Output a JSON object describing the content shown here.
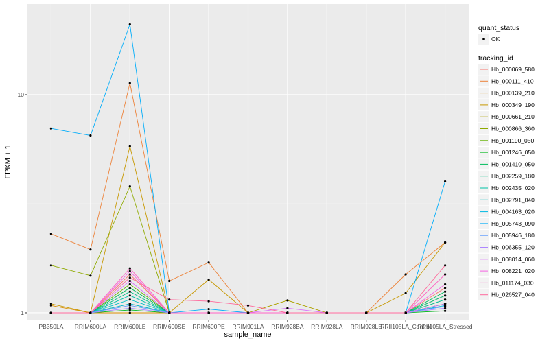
{
  "chart_data": {
    "type": "line",
    "title": "",
    "xlabel": "sample_name",
    "ylabel": "FPKM + 1",
    "y_scale": "log10",
    "ylim": [
      0.93,
      26
    ],
    "y_ticks": [
      {
        "value": 1,
        "label": "1"
      },
      {
        "value": 10,
        "label": "10"
      }
    ],
    "categories": [
      "PB350LA",
      "RRIM600LA",
      "RRIM600LE",
      "RRIM600SE",
      "RRIM600PE",
      "RRIM901LA",
      "RRIM928BA",
      "RRIM928LA",
      "RRIM928LE",
      "RRII105LA_Control",
      "RRII105LA_Stressed"
    ],
    "point_color": "#000000",
    "background": "#ebebeb",
    "series": [
      {
        "name": "Hb_000069_580",
        "color": "#F8766D",
        "values": [
          1.0,
          1.0,
          1.5,
          1.0,
          1.0,
          1.0,
          1.0,
          1.0,
          1.0,
          1.0,
          1.3
        ]
      },
      {
        "name": "Hb_000111_410",
        "color": "#EC8239",
        "values": [
          2.3,
          1.95,
          11.3,
          1.4,
          1.7,
          1.0,
          1.0,
          1.0,
          1.0,
          1.5,
          2.1
        ]
      },
      {
        "name": "Hb_000139_210",
        "color": "#DB8E00",
        "values": [
          1.08,
          1.0,
          1.0,
          1.0,
          1.0,
          1.0,
          1.0,
          1.0,
          1.0,
          1.0,
          1.1
        ]
      },
      {
        "name": "Hb_000349_190",
        "color": "#C79800",
        "values": [
          1.1,
          1.0,
          5.8,
          1.0,
          1.42,
          1.0,
          1.0,
          1.0,
          1.0,
          1.23,
          2.1
        ]
      },
      {
        "name": "Hb_000661_210",
        "color": "#AEA200",
        "values": [
          1.0,
          1.0,
          1.1,
          1.0,
          1.0,
          1.0,
          1.14,
          1.0,
          1.0,
          1.0,
          1.2
        ]
      },
      {
        "name": "Hb_000866_360",
        "color": "#8FAA00",
        "values": [
          1.65,
          1.48,
          3.8,
          1.0,
          1.0,
          1.0,
          1.0,
          1.0,
          1.0,
          1.0,
          1.15
        ]
      },
      {
        "name": "Hb_001190_050",
        "color": "#64B200",
        "values": [
          1.0,
          1.0,
          1.35,
          1.0,
          1.0,
          1.0,
          1.0,
          1.0,
          1.0,
          1.0,
          1.1
        ]
      },
      {
        "name": "Hb_001246_050",
        "color": "#00B81B",
        "values": [
          1.0,
          1.0,
          1.03,
          1.0,
          1.0,
          1.0,
          1.0,
          1.0,
          1.0,
          1.0,
          1.02
        ]
      },
      {
        "name": "Hb_001410_050",
        "color": "#00BD5C",
        "values": [
          1.0,
          1.0,
          1.3,
          1.0,
          1.0,
          1.0,
          1.0,
          1.0,
          1.0,
          1.0,
          1.25
        ]
      },
      {
        "name": "Hb_002259_180",
        "color": "#00C086",
        "values": [
          1.0,
          1.0,
          1.25,
          1.0,
          1.0,
          1.0,
          1.0,
          1.0,
          1.0,
          1.0,
          1.2
        ]
      },
      {
        "name": "Hb_002435_020",
        "color": "#00C1A7",
        "values": [
          1.0,
          1.0,
          1.2,
          1.0,
          1.0,
          1.0,
          1.0,
          1.0,
          1.0,
          1.0,
          1.15
        ]
      },
      {
        "name": "Hb_002791_040",
        "color": "#00BFC4",
        "values": [
          1.0,
          1.0,
          1.15,
          1.0,
          1.0,
          1.0,
          1.0,
          1.0,
          1.0,
          1.0,
          1.1
        ]
      },
      {
        "name": "Hb_004163_020",
        "color": "#00B9E3",
        "values": [
          1.0,
          1.0,
          1.1,
          1.0,
          1.0,
          1.0,
          1.0,
          1.0,
          1.0,
          1.0,
          1.08
        ]
      },
      {
        "name": "Hb_005743_090",
        "color": "#00ADFA",
        "values": [
          7.0,
          6.5,
          21.0,
          1.0,
          1.04,
          1.0,
          1.0,
          1.0,
          1.0,
          1.0,
          4.0
        ]
      },
      {
        "name": "Hb_005946_180",
        "color": "#619CFF",
        "values": [
          1.0,
          1.0,
          1.08,
          1.0,
          1.0,
          1.0,
          1.0,
          1.0,
          1.0,
          1.0,
          1.07
        ]
      },
      {
        "name": "Hb_006355_120",
        "color": "#AE87FF",
        "values": [
          1.0,
          1.0,
          1.05,
          1.0,
          1.0,
          1.0,
          1.0,
          1.0,
          1.0,
          1.0,
          1.05
        ]
      },
      {
        "name": "Hb_008014_060",
        "color": "#DB72FB",
        "values": [
          1.0,
          1.0,
          1.4,
          1.0,
          1.0,
          1.0,
          1.05,
          1.0,
          1.0,
          1.0,
          1.1
        ]
      },
      {
        "name": "Hb_008221_020",
        "color": "#F564E3",
        "values": [
          1.0,
          1.0,
          1.55,
          1.0,
          1.0,
          1.0,
          1.0,
          1.0,
          1.0,
          1.0,
          1.35
        ]
      },
      {
        "name": "Hb_011174_030",
        "color": "#FF61C3",
        "values": [
          1.0,
          1.0,
          1.6,
          1.0,
          1.0,
          1.0,
          1.0,
          1.0,
          1.0,
          1.0,
          1.5
        ]
      },
      {
        "name": "Hb_026527_040",
        "color": "#FF699C",
        "values": [
          1.0,
          1.0,
          1.45,
          1.15,
          1.13,
          1.08,
          1.0,
          1.0,
          1.0,
          1.0,
          1.65
        ]
      }
    ],
    "legends": [
      {
        "title": "quant_status",
        "entries": [
          "OK"
        ]
      },
      {
        "title": "tracking_id"
      }
    ]
  }
}
